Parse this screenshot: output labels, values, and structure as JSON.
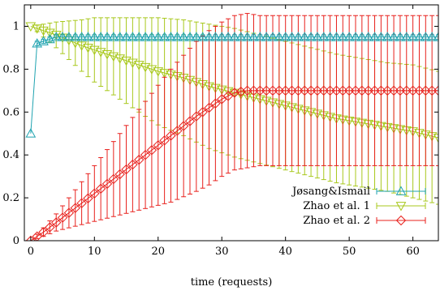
{
  "chart_data": {
    "type": "line",
    "xlabel": "time (requests)",
    "ylabel": "",
    "xlim": [
      -1,
      64
    ],
    "ylim": [
      0,
      1.1
    ],
    "xticks": [
      0,
      10,
      20,
      30,
      40,
      50,
      60
    ],
    "yticks": [
      0,
      0.2,
      0.4,
      0.6,
      0.8,
      1
    ],
    "grid": false,
    "legend_position": "bottom-right",
    "series": [
      {
        "name": "Jøsang&Ismail",
        "color": "#1fa3b0",
        "marker": "triangle-up",
        "x": [
          0,
          1,
          2,
          3,
          4,
          5,
          6,
          8,
          10,
          15,
          20,
          25,
          30,
          35,
          40,
          45,
          50,
          55,
          60,
          64
        ],
        "y": [
          0.5,
          0.92,
          0.93,
          0.94,
          0.95,
          0.95,
          0.95,
          0.95,
          0.95,
          0.95,
          0.95,
          0.95,
          0.95,
          0.95,
          0.95,
          0.95,
          0.95,
          0.95,
          0.95,
          0.95
        ],
        "err": [
          0,
          0.01,
          0.01,
          0.01,
          0.01,
          0.01,
          0.01,
          0.01,
          0.01,
          0.01,
          0.01,
          0.01,
          0.01,
          0.01,
          0.01,
          0.01,
          0.01,
          0.01,
          0.01,
          0.01
        ]
      },
      {
        "name": "Zhao et al. 1",
        "color": "#a8c81c",
        "marker": "triangle-down",
        "x": [
          0,
          2,
          4,
          6,
          8,
          10,
          12,
          16,
          20,
          24,
          28,
          32,
          36,
          40,
          44,
          48,
          52,
          56,
          60,
          64
        ],
        "y": [
          1.0,
          0.98,
          0.96,
          0.935,
          0.91,
          0.89,
          0.87,
          0.83,
          0.79,
          0.76,
          0.72,
          0.69,
          0.66,
          0.63,
          0.6,
          0.57,
          0.55,
          0.53,
          0.51,
          0.48
        ],
        "err": [
          0,
          0.03,
          0.06,
          0.09,
          0.12,
          0.15,
          0.17,
          0.21,
          0.25,
          0.27,
          0.29,
          0.3,
          0.3,
          0.3,
          0.3,
          0.3,
          0.3,
          0.3,
          0.31,
          0.31
        ]
      },
      {
        "name": "Zhao et al. 2",
        "color": "#e8201c",
        "marker": "diamond",
        "x": [
          0,
          2,
          4,
          6,
          8,
          10,
          12,
          14,
          16,
          18,
          20,
          22,
          24,
          26,
          28,
          30,
          32,
          34,
          36,
          40,
          44,
          48,
          52,
          56,
          60,
          64
        ],
        "y": [
          0,
          0.04,
          0.085,
          0.13,
          0.175,
          0.22,
          0.265,
          0.31,
          0.355,
          0.4,
          0.445,
          0.49,
          0.535,
          0.58,
          0.62,
          0.66,
          0.69,
          0.7,
          0.7,
          0.7,
          0.7,
          0.7,
          0.7,
          0.7,
          0.7,
          0.7
        ],
        "err": [
          0,
          0.02,
          0.04,
          0.07,
          0.1,
          0.13,
          0.16,
          0.19,
          0.22,
          0.25,
          0.28,
          0.31,
          0.33,
          0.35,
          0.36,
          0.36,
          0.36,
          0.36,
          0.35,
          0.35,
          0.35,
          0.35,
          0.35,
          0.35,
          0.35,
          0.35
        ]
      }
    ]
  }
}
